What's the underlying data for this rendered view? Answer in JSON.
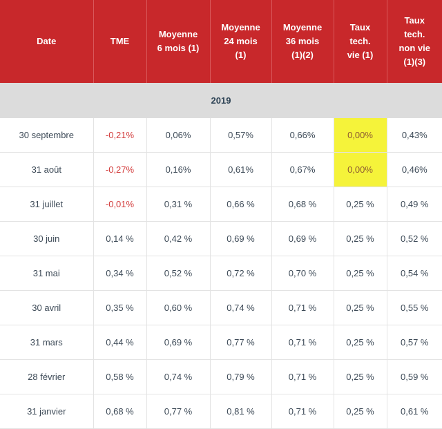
{
  "headers": [
    "Date",
    "TME",
    "Moyenne\n6 mois (1)",
    "Moyenne\n24 mois\n(1)",
    "Moyenne\n36 mois\n(1)(2)",
    "Taux\ntech.\nvie (1)",
    "Taux\ntech.\nnon vie\n(1)(3)"
  ],
  "year": "2019",
  "rows": [
    [
      "30 septembre",
      "-0,21%",
      "0,06%",
      "0,57%",
      "0,66%",
      "0,00%",
      "0,43%"
    ],
    [
      "31 août",
      "-0,27%",
      "0,16%",
      "0,61%",
      "0,67%",
      "0,00%",
      "0,46%"
    ],
    [
      "31 juillet",
      "-0,01%",
      "0,31 %",
      "0,66 %",
      "0,68 %",
      "0,25 %",
      "0,49 %"
    ],
    [
      "30 juin",
      "0,14 %",
      "0,42 %",
      "0,69 %",
      "0,69 %",
      "0,25 %",
      "0,52 %"
    ],
    [
      "31 mai",
      "0,34 %",
      "0,52 %",
      "0,72 %",
      "0,70 %",
      "0,25 %",
      "0,54 %"
    ],
    [
      "30 avril",
      "0,35 %",
      "0,60 %",
      "0,74 %",
      "0,71 %",
      "0,25 %",
      "0,55 %"
    ],
    [
      "31 mars",
      "0,44 %",
      "0,69 %",
      "0,77 %",
      "0,71 %",
      "0,25 %",
      "0,57 %"
    ],
    [
      "28 février",
      "0,58 %",
      "0,74 %",
      "0,79 %",
      "0,71 %",
      "0,25 %",
      "0,59 %"
    ],
    [
      "31 janvier",
      "0,68 %",
      "0,77 %",
      "0,81 %",
      "0,71 %",
      "0,25 %",
      "0,61 %"
    ]
  ],
  "colors": {
    "header_bg": "#c8282b",
    "year_bg": "#dcdcdc",
    "negative_text": "#d23a3a",
    "highlight_bg": "#f5f33a"
  }
}
